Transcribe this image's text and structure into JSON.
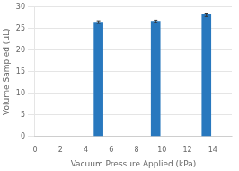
{
  "chart_data": {
    "type": "bar",
    "x": [
      5,
      9.5,
      13.5
    ],
    "values": [
      26.5,
      26.7,
      28.2
    ],
    "errors": [
      0.3,
      0.25,
      0.4
    ],
    "color": "#2878be",
    "xlabel": "Vacuum Pressure Applied (kPa)",
    "ylabel": "Volume Sampled (µL)",
    "xlim": [
      0,
      15.5
    ],
    "ylim": [
      0,
      30
    ],
    "xticks": [
      0,
      2,
      4,
      6,
      8,
      10,
      12,
      14
    ],
    "yticks": [
      0,
      5,
      10,
      15,
      20,
      25,
      30
    ],
    "grid": true
  }
}
